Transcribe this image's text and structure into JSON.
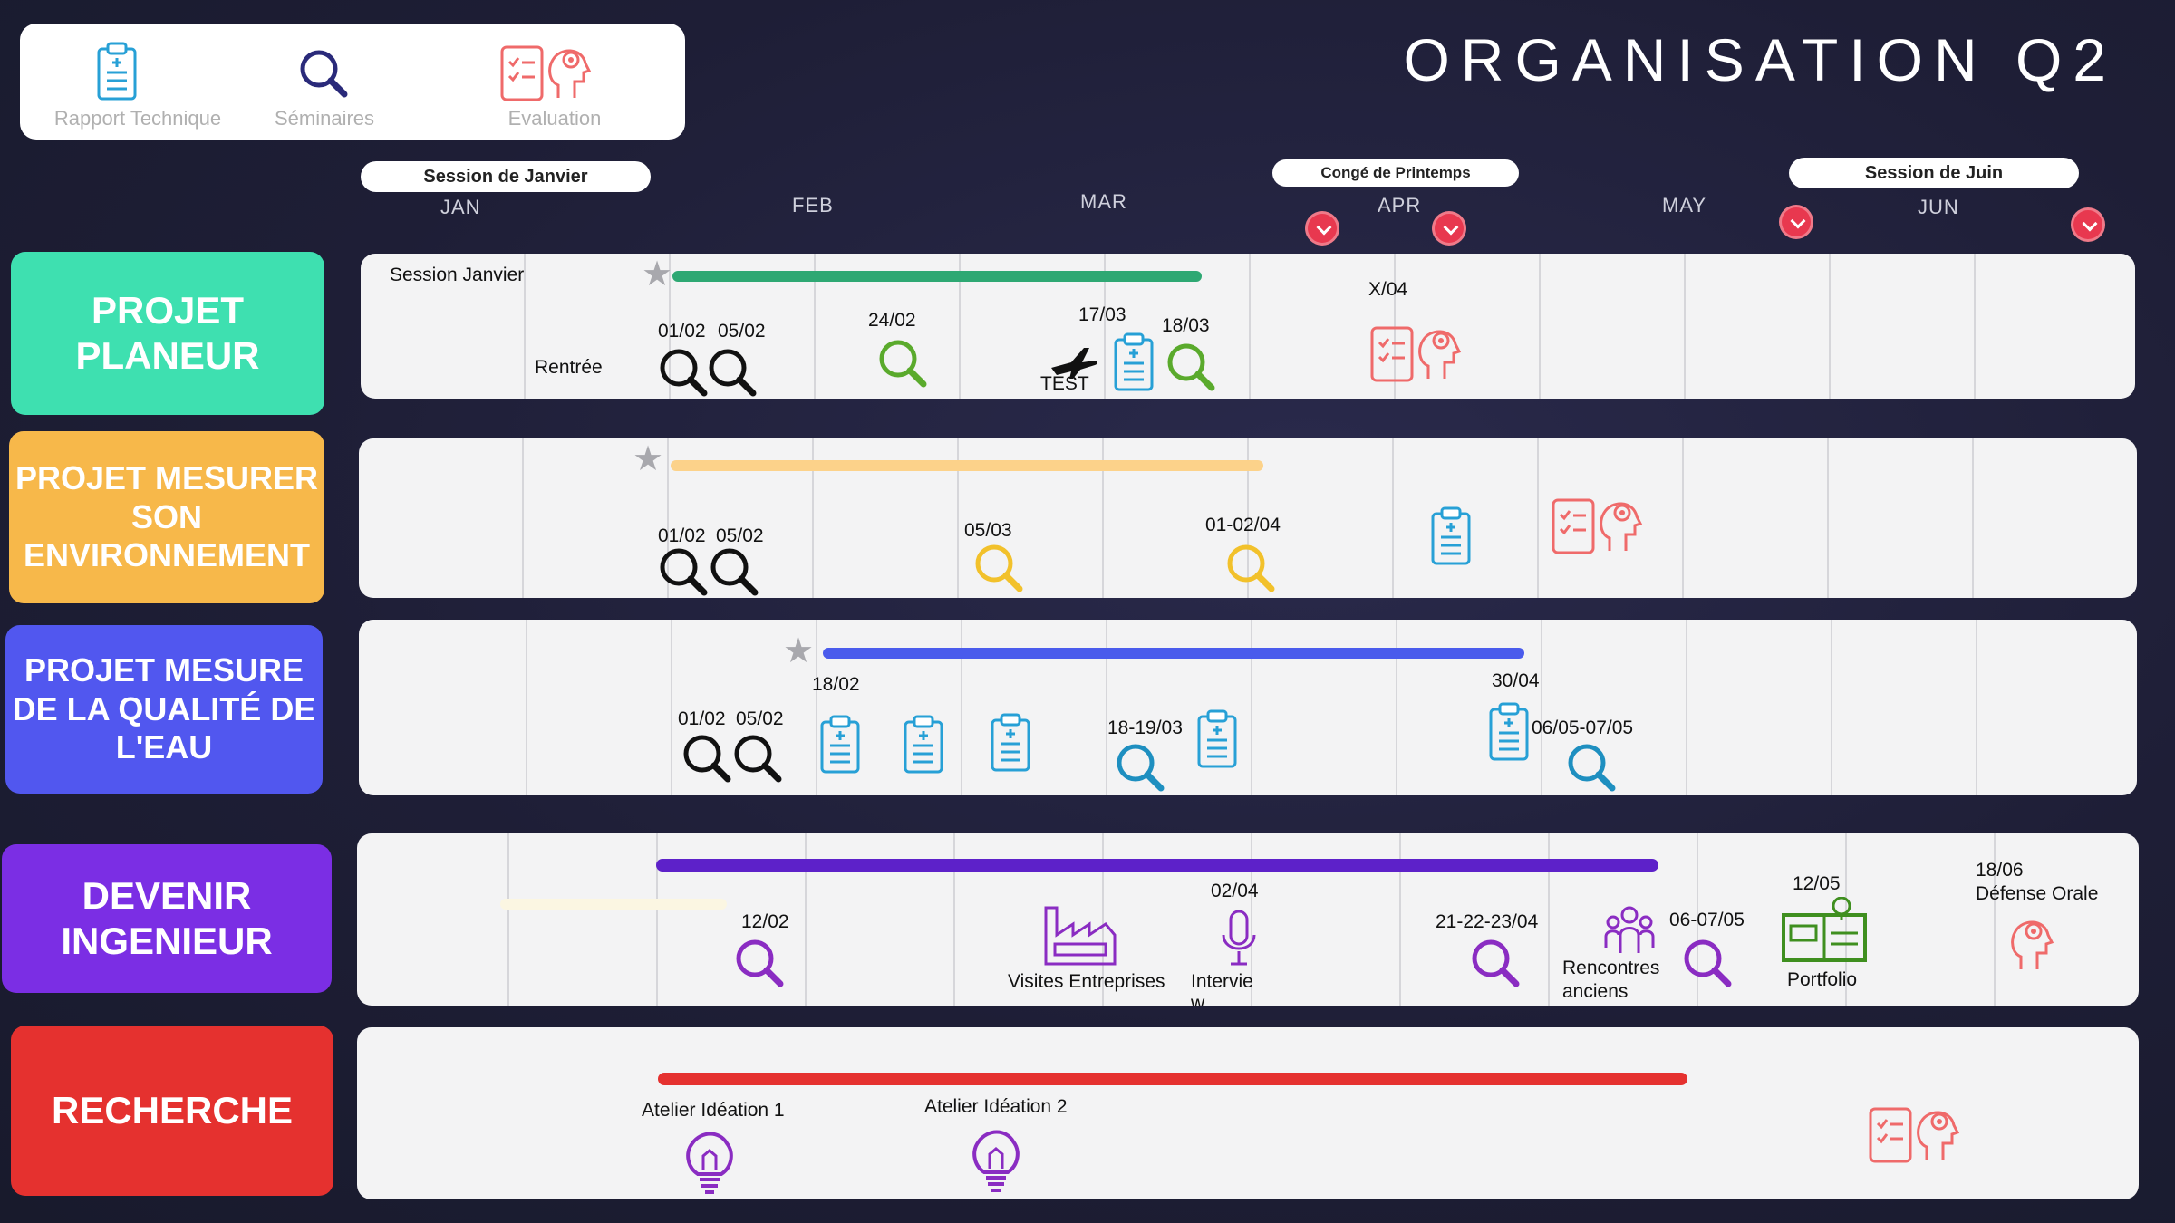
{
  "title": "ORGANISATION Q2",
  "legend": {
    "rapport": "Rapport Technique",
    "seminaires": "Séminaires",
    "evaluation": "Evaluation"
  },
  "sessions": {
    "janvier": "Session de Janvier",
    "printemps": "Congé de Printemps",
    "juin": "Session de Juin"
  },
  "months": [
    "JAN",
    "FEB",
    "MAR",
    "APR",
    "MAY",
    "JUN"
  ],
  "projects": {
    "planeur": "PROJET\nPLANEUR",
    "mesurer": "PROJET MESURER\nSON\nENVIRONNEMENT",
    "eau": "PROJET MESURE\nDE LA QUALITÉ DE\nL'EAU",
    "ingenieur": "DEVENIR\nINGENIEUR",
    "recherche": "RECHERCHE"
  },
  "colors": {
    "planeur": "#3ee0b0",
    "mesurer": "#f7b84a",
    "eau": "#5157ef",
    "ingenieur": "#7b2ee4",
    "recherche": "#e5312f",
    "seminar_green": "#5aaa2c",
    "seminar_yellow": "#f2c12b",
    "seminar_blue": "#1e8fc0",
    "seminar_purple": "#8a2cc2",
    "rapport_blue": "#27a0d6",
    "eval_red": "#ef6a6a"
  },
  "row1": {
    "session": "Session Janvier",
    "rentree": "Rentrée",
    "d1": "01/02",
    "d2": "05/02",
    "d3": "24/02",
    "d4": "17/03",
    "test": "TEST",
    "d5": "18/03",
    "d6": "X/04"
  },
  "row2": {
    "d1": "01/02",
    "d2": "05/02",
    "d3": "05/03",
    "d4": "01-02/04"
  },
  "row3": {
    "d0": "18/02",
    "d1": "01/02",
    "d2": "05/02",
    "d3": "18-19/03",
    "d4": "30/04",
    "d5": "06/05-07/05"
  },
  "row4": {
    "d1": "12/02",
    "visites": "Visites Entreprises",
    "d2": "02/04",
    "interview": "Intervie\nw",
    "d3": "21-22-23/04",
    "rencontres": "Rencontres\nanciens",
    "d4": "06-07/05",
    "d5": "12/05",
    "portfolio": "Portfolio",
    "d6": "18/06\nDéfense Orale"
  },
  "row5": {
    "a1": "Atelier Idéation 1",
    "a2": "Atelier Idéation 2"
  }
}
